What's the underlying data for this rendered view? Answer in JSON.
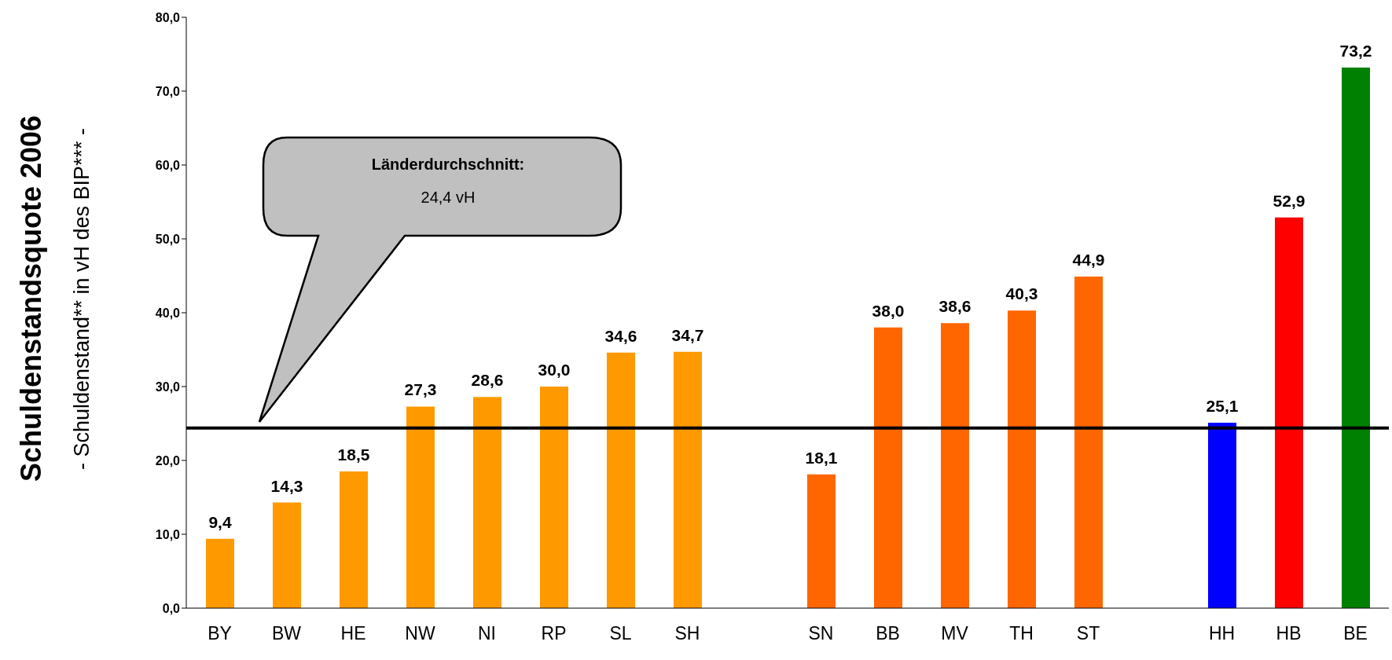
{
  "chart_data": {
    "type": "bar",
    "title": "Schuldenstandsquote 2006",
    "ylabel": "- Schuldenstand** in vH des BIP*** -",
    "categories": [
      "BY",
      "BW",
      "HE",
      "NW",
      "NI",
      "RP",
      "SL",
      "SH",
      null,
      "SN",
      "BB",
      "MV",
      "TH",
      "ST",
      null,
      "HH",
      "HB",
      "BE"
    ],
    "values": [
      9.4,
      14.3,
      18.5,
      27.3,
      28.6,
      30.0,
      34.6,
      34.7,
      null,
      18.1,
      38.0,
      38.6,
      40.3,
      44.9,
      null,
      25.1,
      52.9,
      73.2
    ],
    "colors": [
      "#ff9900",
      "#ff9900",
      "#ff9900",
      "#ff9900",
      "#ff9900",
      "#ff9900",
      "#ff9900",
      "#ff9900",
      null,
      "#ff6600",
      "#ff6600",
      "#ff6600",
      "#ff6600",
      "#ff6600",
      null,
      "#0000ff",
      "#ff0000",
      "#008000"
    ],
    "value_labels": [
      "9,4",
      "14,3",
      "18,5",
      "27,3",
      "28,6",
      "30,0",
      "34,6",
      "34,7",
      null,
      "18,1",
      "38,0",
      "38,6",
      "40,3",
      "44,9",
      null,
      "25,1",
      "52,9",
      "73,2"
    ],
    "ylim": [
      0,
      80
    ],
    "yticks": [
      {
        "value": 0,
        "label": "0,0"
      },
      {
        "value": 10,
        "label": "10,0"
      },
      {
        "value": 20,
        "label": "20,0"
      },
      {
        "value": 30,
        "label": "30,0"
      },
      {
        "value": 40,
        "label": "40,0"
      },
      {
        "value": 50,
        "label": "50,0"
      },
      {
        "value": 60,
        "label": "60,0"
      },
      {
        "value": 70,
        "label": "70,0"
      },
      {
        "value": 80,
        "label": "80,0"
      }
    ],
    "ref_lines": [
      {
        "axis": "y",
        "value": 24.4,
        "label": "Länderdurchschnitt:",
        "color": "#000000"
      }
    ],
    "annotations": [
      "24,4 vH"
    ],
    "grid": false,
    "legend": false
  }
}
